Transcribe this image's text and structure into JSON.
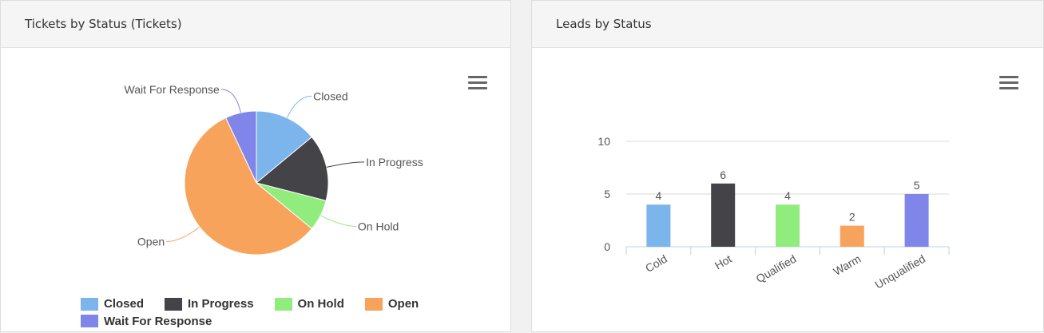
{
  "tickets_panel": {
    "title": "Tickets by Status (Tickets)",
    "menu_icon": "hamburger-menu-icon"
  },
  "leads_panel": {
    "title": "Leads by Status",
    "menu_icon": "hamburger-menu-icon"
  },
  "chart_data": [
    {
      "type": "pie",
      "categories": [
        "Closed",
        "In Progress",
        "On Hold",
        "Open",
        "Wait For Response"
      ],
      "values": [
        14,
        15,
        7,
        57,
        7
      ],
      "colors": [
        "#7cb5ec",
        "#434348",
        "#90ed7d",
        "#f7a35c",
        "#8085e9"
      ],
      "legend": "bottom"
    },
    {
      "type": "bar",
      "categories": [
        "Cold",
        "Hot",
        "Qualified",
        "Warm",
        "Unqualified"
      ],
      "values": [
        4,
        6,
        4,
        2,
        5
      ],
      "colors": [
        "#7cb5ec",
        "#434348",
        "#90ed7d",
        "#f7a35c",
        "#8085e9"
      ],
      "ylim": [
        0,
        10
      ],
      "yticks": [
        0,
        5,
        10
      ],
      "grid": true
    }
  ]
}
